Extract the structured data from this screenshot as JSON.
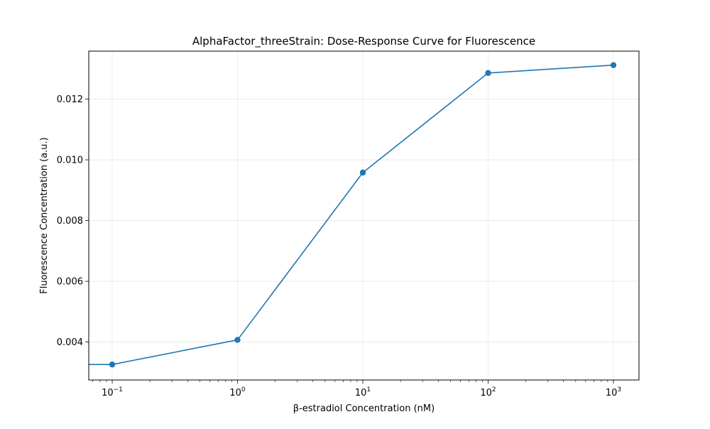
{
  "chart_data": {
    "type": "line",
    "title": "AlphaFactor_threeStrain: Dose-Response Curve for Fluorescence",
    "xlabel": "β-estradiol Concentration (nM)",
    "ylabel": "Fluorescence Concentration (a.u.)",
    "xscale": "log",
    "xlim": [
      0.065,
      1600
    ],
    "ylim": [
      0.00275,
      0.01358
    ],
    "grid": true,
    "x_ticks": [
      {
        "value": 0.1,
        "base": "10",
        "exp": "−1"
      },
      {
        "value": 1,
        "base": "10",
        "exp": "0"
      },
      {
        "value": 10,
        "base": "10",
        "exp": "1"
      },
      {
        "value": 100,
        "base": "10",
        "exp": "2"
      },
      {
        "value": 1000,
        "base": "10",
        "exp": "3"
      }
    ],
    "y_ticks": [
      {
        "value": 0.004,
        "label": "0.004"
      },
      {
        "value": 0.006,
        "label": "0.006"
      },
      {
        "value": 0.008,
        "label": "0.008"
      },
      {
        "value": 0.01,
        "label": "0.010"
      },
      {
        "value": 0.012,
        "label": "0.012"
      }
    ],
    "series": [
      {
        "color": "#1f77b4",
        "marker": "circle",
        "points": [
          {
            "x": 0.0,
            "y": 0.00326
          },
          {
            "x": 0.1,
            "y": 0.00326
          },
          {
            "x": 1,
            "y": 0.00407
          },
          {
            "x": 10,
            "y": 0.00958
          },
          {
            "x": 100,
            "y": 0.01286
          },
          {
            "x": 1000,
            "y": 0.01312
          }
        ]
      }
    ]
  }
}
